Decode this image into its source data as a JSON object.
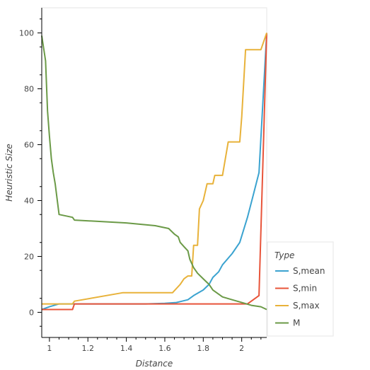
{
  "chart_data": {
    "type": "line",
    "xlabel": "Distance",
    "ylabel": "Heuristic Size",
    "xlim": [
      0.96,
      2.13
    ],
    "ylim": [
      -9,
      109
    ],
    "xticks": [
      "1",
      "1.2",
      "1.4",
      "1.6",
      "1.8",
      "2"
    ],
    "yticks": [
      "0",
      "20",
      "40",
      "60",
      "80",
      "100"
    ],
    "legend": {
      "title": "Type",
      "placement": "right"
    },
    "grid": false,
    "series": [
      {
        "name": "S,mean",
        "color": "#3ba3d0",
        "x": [
          0.96,
          1.0,
          1.05,
          1.1,
          1.2,
          1.4,
          1.5,
          1.6,
          1.66,
          1.72,
          1.75,
          1.8,
          1.83,
          1.85,
          1.88,
          1.9,
          1.95,
          1.99,
          2.03,
          2.06,
          2.09,
          2.13
        ],
        "y": [
          1,
          2,
          3,
          3,
          3,
          3,
          3,
          3.2,
          3.5,
          4.5,
          6,
          8,
          10,
          12.5,
          14.5,
          17,
          21,
          25,
          34,
          42,
          50,
          100
        ]
      },
      {
        "name": "S,min",
        "color": "#e8543a",
        "x": [
          0.96,
          1.12,
          1.13,
          1.5,
          2.0,
          2.03,
          2.06,
          2.09,
          2.13
        ],
        "y": [
          1,
          1,
          3,
          3,
          3,
          3,
          4.5,
          6,
          100
        ]
      },
      {
        "name": "S,max",
        "color": "#e8b23a",
        "x": [
          0.96,
          1.12,
          1.13,
          1.38,
          1.5,
          1.64,
          1.68,
          1.7,
          1.72,
          1.74,
          1.75,
          1.77,
          1.78,
          1.8,
          1.82,
          1.83,
          1.84,
          1.85,
          1.86,
          1.89,
          1.9,
          1.93,
          1.94,
          1.99,
          2.0,
          2.02,
          2.03,
          2.1,
          2.13
        ],
        "y": [
          3,
          3,
          4,
          7,
          7,
          7,
          10,
          12,
          13,
          13,
          24,
          24,
          37,
          40,
          46,
          46,
          46,
          46,
          49,
          49,
          49,
          61,
          61,
          61,
          70,
          94,
          94,
          94,
          100
        ]
      },
      {
        "name": "M",
        "color": "#6b9a47",
        "x": [
          0.96,
          0.98,
          0.99,
          1.0,
          1.01,
          1.02,
          1.03,
          1.05,
          1.12,
          1.13,
          1.4,
          1.55,
          1.62,
          1.65,
          1.67,
          1.68,
          1.7,
          1.72,
          1.73,
          1.75,
          1.77,
          1.8,
          1.83,
          1.85,
          1.88,
          1.9,
          1.95,
          2.0,
          2.05,
          2.1,
          2.13
        ],
        "y": [
          99,
          90,
          72,
          63,
          55,
          50,
          46,
          35,
          34,
          33,
          32,
          31,
          30,
          28,
          27,
          25,
          23.5,
          22,
          19,
          16,
          14,
          12,
          10,
          8,
          6.5,
          5.5,
          4.5,
          3.5,
          2.5,
          2,
          1
        ]
      }
    ]
  }
}
